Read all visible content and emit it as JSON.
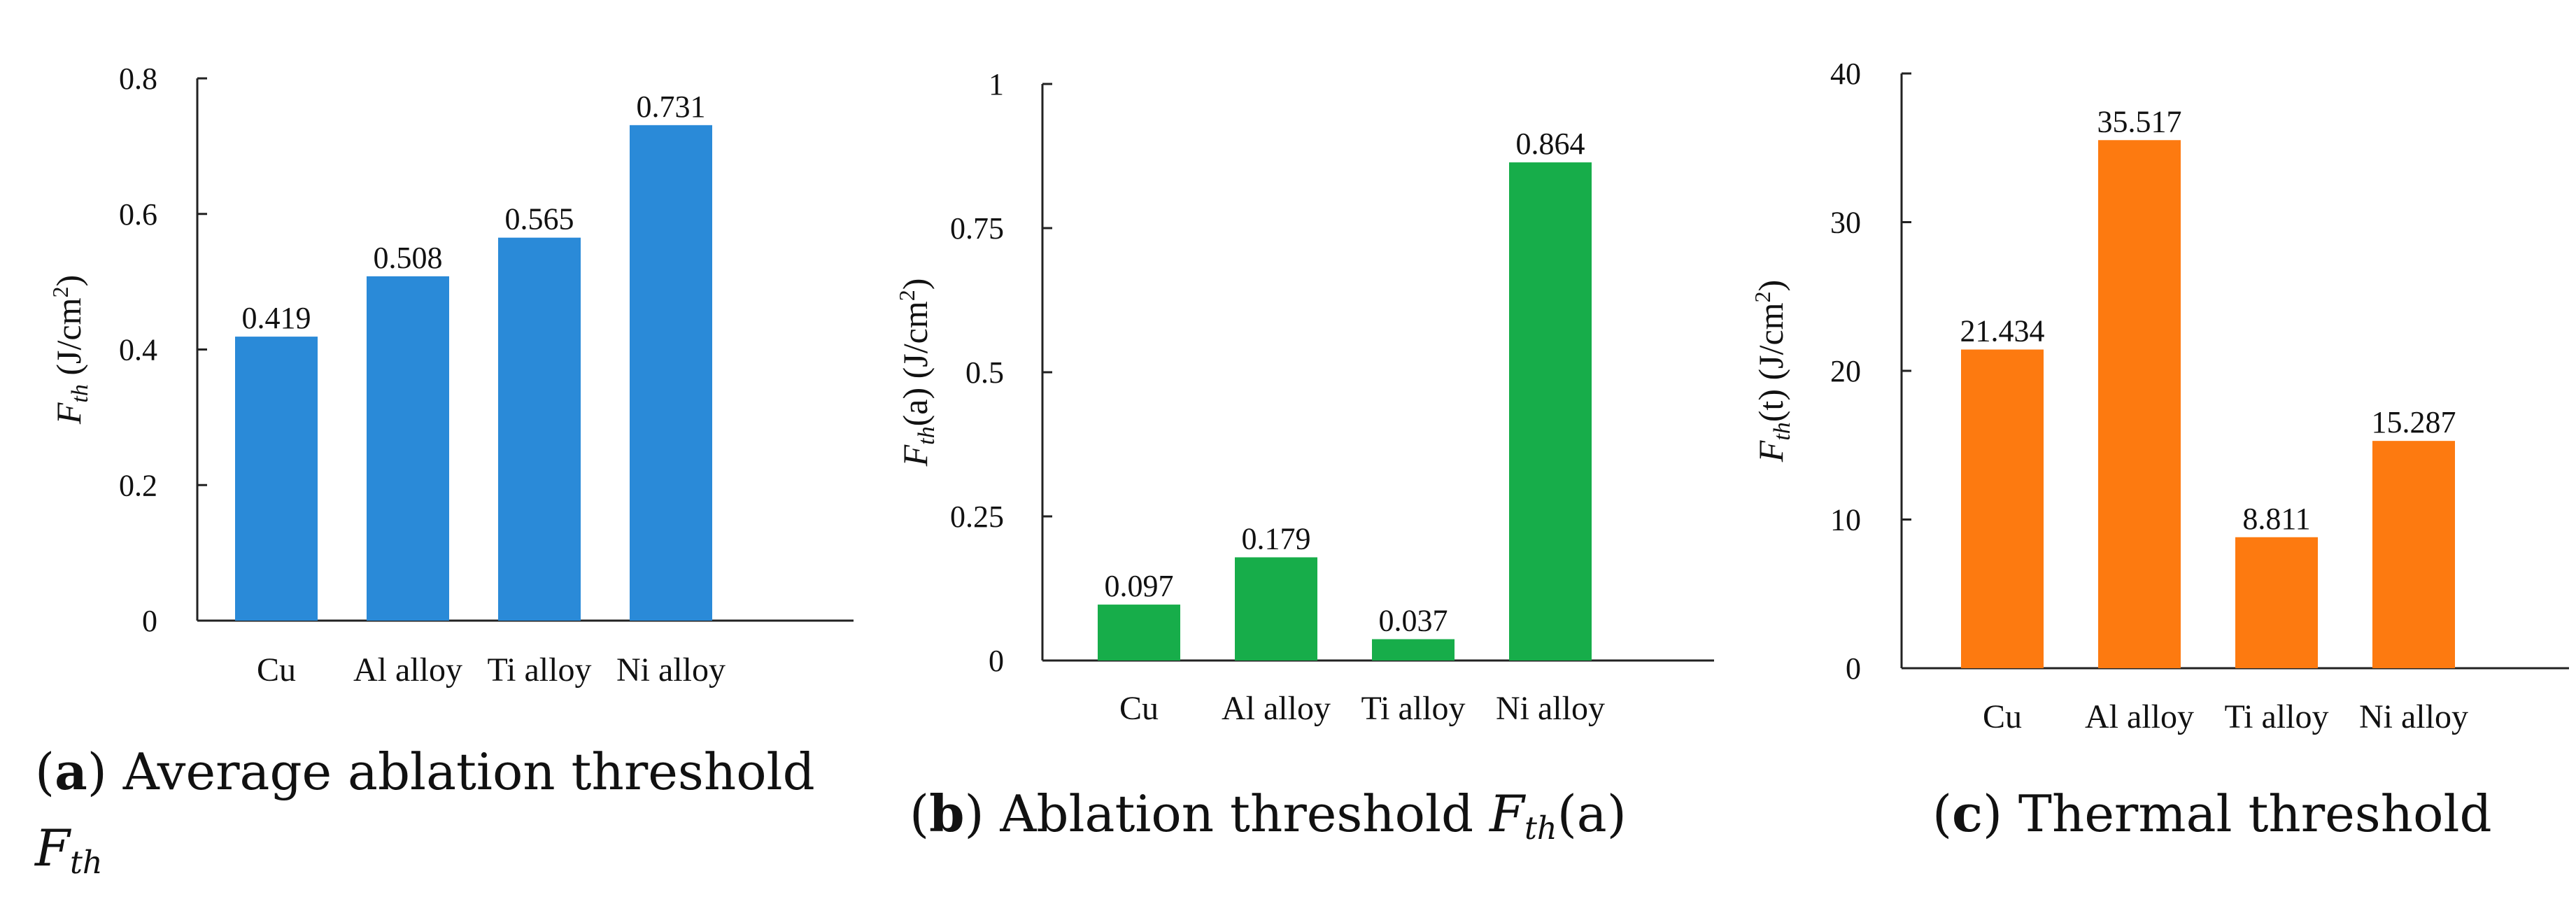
{
  "chart_data": [
    {
      "type": "bar",
      "id": "a",
      "categories": [
        "Cu",
        "Al alloy",
        "Ti alloy",
        "Ni alloy"
      ],
      "values": [
        0.419,
        0.508,
        0.565,
        0.731
      ],
      "data_labels": [
        "0.419",
        "0.508",
        "0.565",
        "0.731"
      ],
      "ylim": [
        0,
        0.8
      ],
      "yticks": [
        "0",
        "0.2",
        "0.4",
        "0.6",
        "0.8"
      ],
      "ylabel": {
        "main": "F",
        "sub": "th",
        "rest": " (J/cm",
        "sup": "2",
        "end": ")"
      },
      "color": "#2a8ad8",
      "caption": {
        "letter": "a",
        "text": " Average ablation threshold",
        "sym": "F",
        "sym_sub": "th"
      }
    },
    {
      "type": "bar",
      "id": "b",
      "categories": [
        "Cu",
        "Al alloy",
        "Ti alloy",
        "Ni alloy"
      ],
      "values": [
        0.097,
        0.179,
        0.037,
        0.864
      ],
      "data_labels": [
        "0.097",
        "0.179",
        "0.037",
        "0.864"
      ],
      "ylim": [
        0,
        1
      ],
      "yticks": [
        "0",
        "0.25",
        "0.5",
        "0.75",
        "1"
      ],
      "ylabel": {
        "main": "F",
        "sub": "th",
        "rest": "(a) (J/cm",
        "sup": "2",
        "end": ")"
      },
      "color": "#17ad4a",
      "caption": {
        "letter": "b",
        "text": " Ablation threshold ",
        "sym": "F",
        "sym_sub": "th",
        "sym_rest": "(a)"
      }
    },
    {
      "type": "bar",
      "id": "c",
      "categories": [
        "Cu",
        "Al alloy",
        "Ti alloy",
        "Ni alloy"
      ],
      "values": [
        21.434,
        35.517,
        8.811,
        15.287
      ],
      "data_labels": [
        "21.434",
        "35.517",
        "8.811",
        "15.287"
      ],
      "ylim": [
        0,
        40
      ],
      "yticks": [
        "0",
        "10",
        "20",
        "30",
        "40"
      ],
      "ylabel": {
        "main": "F",
        "sub": "th",
        "rest": "(t) (J/cm",
        "sup": "2",
        "end": ")"
      },
      "color": "#fd7a10",
      "caption": {
        "letter": "c",
        "text": " Thermal threshold"
      }
    }
  ]
}
